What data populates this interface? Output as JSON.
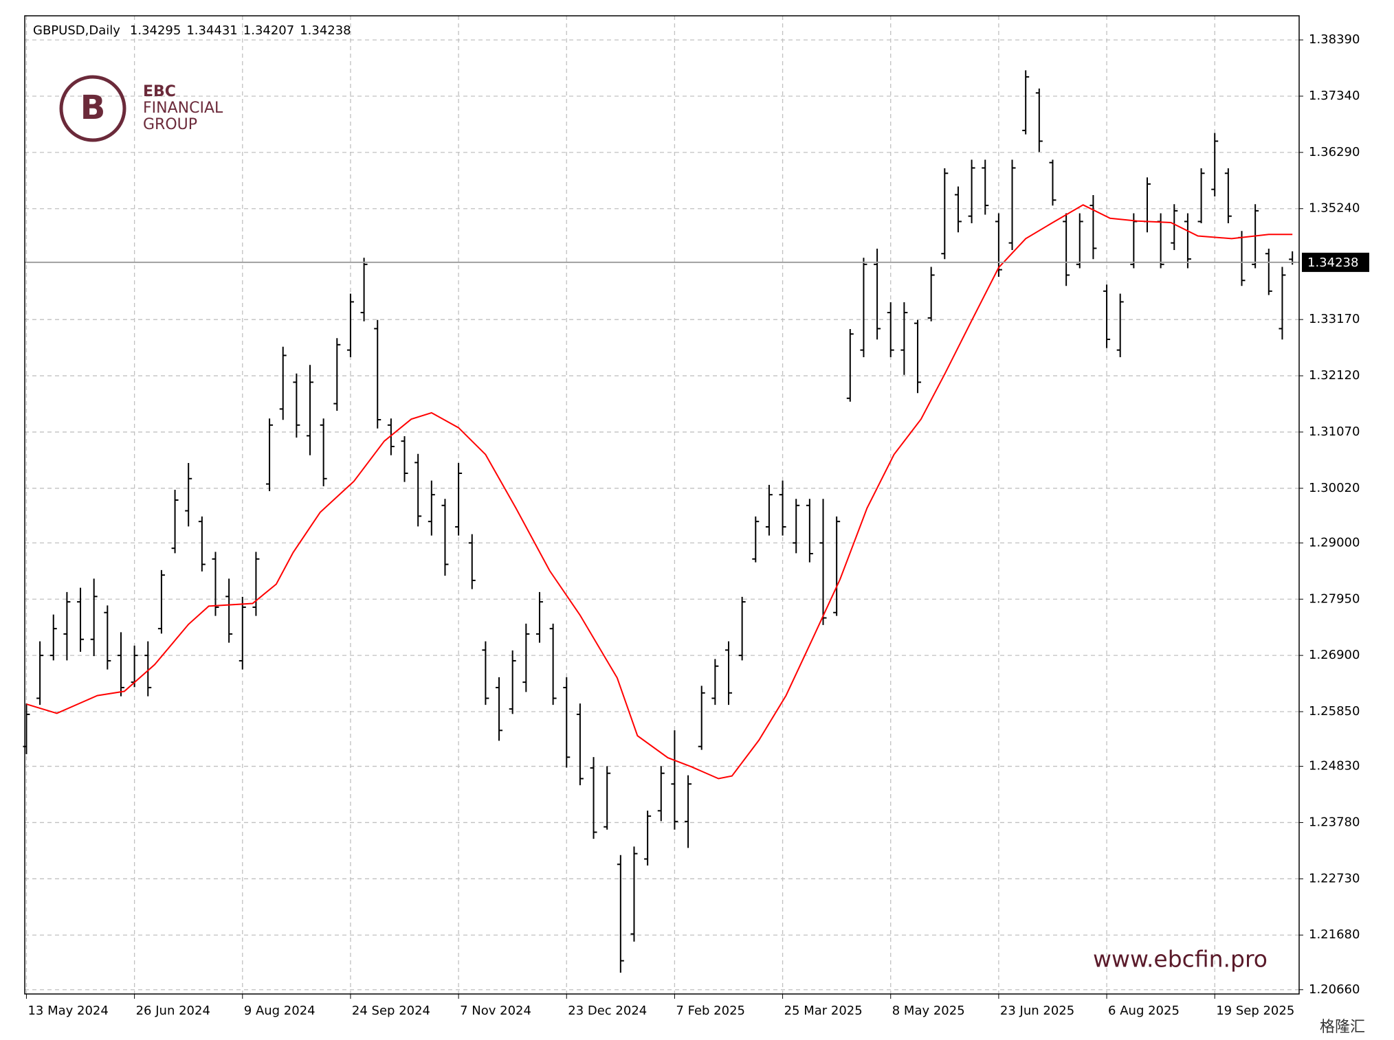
{
  "chart_data": {
    "type": "ohlc",
    "symbol": "GBPUSD,Daily",
    "x": [
      0,
      4,
      8,
      12,
      16,
      20,
      24,
      28,
      32,
      36,
      40,
      44,
      48,
      52,
      56,
      60,
      64,
      68,
      72,
      76,
      80,
      84,
      88,
      92,
      96,
      100,
      104,
      108,
      112,
      116,
      120,
      124,
      128,
      132,
      136,
      140,
      144,
      148,
      152,
      156,
      160,
      164,
      168,
      172,
      176,
      180,
      184,
      188,
      192,
      196,
      200,
      204,
      208,
      212,
      216,
      220,
      224,
      228,
      232,
      236,
      240,
      244,
      248,
      252,
      256,
      260,
      264,
      268,
      272,
      276,
      280,
      284,
      288,
      292,
      296,
      300,
      304,
      308,
      312,
      316,
      320,
      324,
      328,
      332,
      336,
      340,
      344,
      348,
      352,
      356,
      360,
      364,
      368,
      372,
      375
    ],
    "open": [
      1.252,
      1.261,
      1.269,
      1.273,
      1.279,
      1.272,
      1.277,
      1.269,
      1.264,
      1.269,
      1.274,
      1.289,
      1.296,
      1.294,
      1.287,
      1.28,
      1.268,
      1.278,
      1.301,
      1.315,
      1.32,
      1.31,
      1.312,
      1.316,
      1.326,
      1.333,
      1.33,
      1.312,
      1.309,
      1.305,
      1.294,
      1.297,
      1.293,
      1.29,
      1.27,
      1.263,
      1.259,
      1.264,
      1.273,
      1.274,
      1.263,
      1.258,
      1.248,
      1.237,
      1.23,
      1.217,
      1.231,
      1.24,
      1.245,
      1.238,
      1.252,
      1.261,
      1.27,
      1.269,
      1.287,
      1.293,
      1.299,
      1.29,
      1.297,
      1.29,
      1.277,
      1.317,
      1.326,
      1.342,
      1.333,
      1.326,
      1.331,
      1.332,
      1.344,
      1.355,
      1.351,
      1.36,
      1.35,
      1.346,
      1.367,
      1.374,
      1.361,
      1.35,
      1.342,
      1.353,
      1.337,
      1.326,
      1.342,
      1.35,
      1.35,
      1.346,
      1.35,
      1.35,
      1.356,
      1.359,
      1.347,
      1.342,
      1.344,
      1.33,
      1.34295
    ],
    "high": [
      1.2599,
      1.2715,
      1.2765,
      1.2807,
      1.2815,
      1.2832,
      1.2782,
      1.2732,
      1.2707,
      1.2715,
      1.2848,
      1.2998,
      1.3048,
      1.2948,
      1.2882,
      1.2832,
      1.2798,
      1.2882,
      1.3131,
      1.3265,
      1.3215,
      1.3231,
      1.3131,
      1.3281,
      1.3364,
      1.3431,
      1.3315,
      1.3131,
      1.3098,
      1.3065,
      1.3015,
      1.2981,
      1.3048,
      1.2915,
      1.2715,
      1.2648,
      1.2698,
      1.2748,
      1.2807,
      1.2748,
      1.2648,
      1.2599,
      1.2499,
      1.2482,
      1.2316,
      1.2332,
      1.2399,
      1.2482,
      1.2549,
      1.2465,
      1.2632,
      1.2682,
      1.2715,
      1.2798,
      1.2948,
      1.3007,
      1.3015,
      1.2981,
      1.2981,
      1.2981,
      1.2948,
      1.3298,
      1.3431,
      1.3448,
      1.3348,
      1.3348,
      1.3315,
      1.3414,
      1.3598,
      1.3564,
      1.3614,
      1.3614,
      1.3514,
      1.3614,
      1.3781,
      1.3747,
      1.3614,
      1.3514,
      1.3514,
      1.3548,
      1.3381,
      1.3364,
      1.3514,
      1.3581,
      1.3514,
      1.3531,
      1.3514,
      1.3598,
      1.3664,
      1.3598,
      1.3481,
      1.3531,
      1.3448,
      1.3414,
      1.34431
    ],
    "low": [
      1.2507,
      1.2599,
      1.2682,
      1.2682,
      1.2698,
      1.269,
      1.2665,
      1.2615,
      1.2632,
      1.2615,
      1.2732,
      1.2882,
      1.2932,
      1.2848,
      1.2765,
      1.2715,
      1.2665,
      1.2765,
      1.2998,
      1.3131,
      1.3098,
      1.3065,
      1.3007,
      1.3148,
      1.3248,
      1.3315,
      1.3115,
      1.3065,
      1.3015,
      1.2932,
      1.2915,
      1.284,
      1.2915,
      1.2815,
      1.2599,
      1.2532,
      1.2582,
      1.2623,
      1.2715,
      1.2599,
      1.2482,
      1.2449,
      1.2349,
      1.2366,
      1.2099,
      1.2157,
      1.2299,
      1.2382,
      1.2366,
      1.2332,
      1.2515,
      1.2599,
      1.2599,
      1.2682,
      1.2865,
      1.2915,
      1.2915,
      1.2882,
      1.2865,
      1.2748,
      1.2765,
      1.3165,
      1.3248,
      1.3281,
      1.3248,
      1.3215,
      1.3181,
      1.3315,
      1.3431,
      1.3481,
      1.3498,
      1.3514,
      1.3398,
      1.3448,
      1.3664,
      1.3631,
      1.3531,
      1.3381,
      1.3414,
      1.3431,
      1.3265,
      1.3248,
      1.3414,
      1.3481,
      1.3414,
      1.3448,
      1.3414,
      1.3498,
      1.3548,
      1.3498,
      1.3381,
      1.3414,
      1.3364,
      1.3281,
      1.34207
    ],
    "close": [
      1.258,
      1.269,
      1.274,
      1.279,
      1.272,
      1.28,
      1.268,
      1.263,
      1.269,
      1.263,
      1.284,
      1.298,
      1.302,
      1.286,
      1.278,
      1.273,
      1.278,
      1.287,
      1.312,
      1.325,
      1.312,
      1.32,
      1.302,
      1.327,
      1.335,
      1.342,
      1.313,
      1.308,
      1.303,
      1.295,
      1.299,
      1.286,
      1.303,
      1.283,
      1.261,
      1.255,
      1.268,
      1.273,
      1.279,
      1.261,
      1.25,
      1.246,
      1.236,
      1.247,
      1.212,
      1.232,
      1.239,
      1.247,
      1.238,
      1.245,
      1.262,
      1.267,
      1.262,
      1.279,
      1.294,
      1.299,
      1.293,
      1.297,
      1.288,
      1.276,
      1.294,
      1.329,
      1.342,
      1.33,
      1.326,
      1.333,
      1.32,
      1.34,
      1.359,
      1.35,
      1.36,
      1.353,
      1.341,
      1.36,
      1.377,
      1.365,
      1.354,
      1.34,
      1.35,
      1.345,
      1.328,
      1.335,
      1.35,
      1.357,
      1.342,
      1.352,
      1.343,
      1.359,
      1.365,
      1.351,
      1.339,
      1.352,
      1.337,
      1.34,
      1.34238
    ],
    "color": "#000000",
    "ma": {
      "color": "#ff0000",
      "x": [
        0,
        9,
        21,
        29,
        38,
        48,
        54,
        67,
        74,
        79,
        87,
        97,
        106,
        114,
        120,
        128,
        136,
        145,
        155,
        164,
        175,
        181,
        190,
        197,
        205,
        209,
        217,
        225,
        233,
        241,
        249,
        257,
        265,
        272,
        280,
        288,
        296,
        304,
        313,
        321,
        329,
        339,
        347,
        357,
        368,
        375
      ],
      "values": [
        1.2599,
        1.2582,
        1.2615,
        1.2623,
        1.2673,
        1.2748,
        1.2782,
        1.2787,
        1.2823,
        1.2882,
        1.2957,
        1.3015,
        1.309,
        1.3131,
        1.3143,
        1.3115,
        1.3065,
        1.2965,
        1.2848,
        1.2765,
        1.2648,
        1.254,
        1.2499,
        1.2482,
        1.246,
        1.2465,
        1.2532,
        1.2615,
        1.2723,
        1.2832,
        1.2965,
        1.3065,
        1.3131,
        1.3215,
        1.3315,
        1.3414,
        1.3468,
        1.3498,
        1.3531,
        1.3506,
        1.3501,
        1.3498,
        1.3473,
        1.3468,
        1.3476,
        1.3476
      ]
    },
    "xlim": [
      -0.5,
      377
    ],
    "xticks": [
      {
        "value": 0,
        "label": "13 May 2024"
      },
      {
        "value": 32,
        "label": "26 Jun 2024"
      },
      {
        "value": 64,
        "label": "9 Aug 2024"
      },
      {
        "value": 96,
        "label": "24 Sep 2024"
      },
      {
        "value": 128,
        "label": "7 Nov 2024"
      },
      {
        "value": 160,
        "label": "23 Dec 2024"
      },
      {
        "value": 192,
        "label": "7 Feb 2025"
      },
      {
        "value": 224,
        "label": "25 Mar 2025"
      },
      {
        "value": 256,
        "label": "8 May 2025"
      },
      {
        "value": 288,
        "label": "23 Jun 2025"
      },
      {
        "value": 320,
        "label": "6 Aug 2025"
      },
      {
        "value": 352,
        "label": "19 Sep 2025"
      }
    ],
    "ylim": [
      1.2058,
      1.3884
    ],
    "yticks": [
      {
        "value": 1.3839,
        "label": "1.38390"
      },
      {
        "value": 1.3734,
        "label": "1.37340"
      },
      {
        "value": 1.3629,
        "label": "1.36290"
      },
      {
        "value": 1.3524,
        "label": "1.35240"
      },
      {
        "value": 1.3317,
        "label": "1.33170"
      },
      {
        "value": 1.3212,
        "label": "1.32120"
      },
      {
        "value": 1.3107,
        "label": "1.31070"
      },
      {
        "value": 1.3002,
        "label": "1.30020"
      },
      {
        "value": 1.29,
        "label": "1.29000"
      },
      {
        "value": 1.2795,
        "label": "1.27950"
      },
      {
        "value": 1.269,
        "label": "1.26900"
      },
      {
        "value": 1.2585,
        "label": "1.25850"
      },
      {
        "value": 1.2483,
        "label": "1.24830"
      },
      {
        "value": 1.2378,
        "label": "1.23780"
      },
      {
        "value": 1.2273,
        "label": "1.22730"
      },
      {
        "value": 1.2168,
        "label": "1.21680"
      },
      {
        "value": 1.2066,
        "label": "1.20660"
      }
    ],
    "grid": true
  },
  "watermark": {
    "brand": "EBC",
    "line1": "FINANCIAL",
    "line2": "GROUP",
    "url": "www.ebcfin.pro",
    "source": "格隆汇"
  }
}
